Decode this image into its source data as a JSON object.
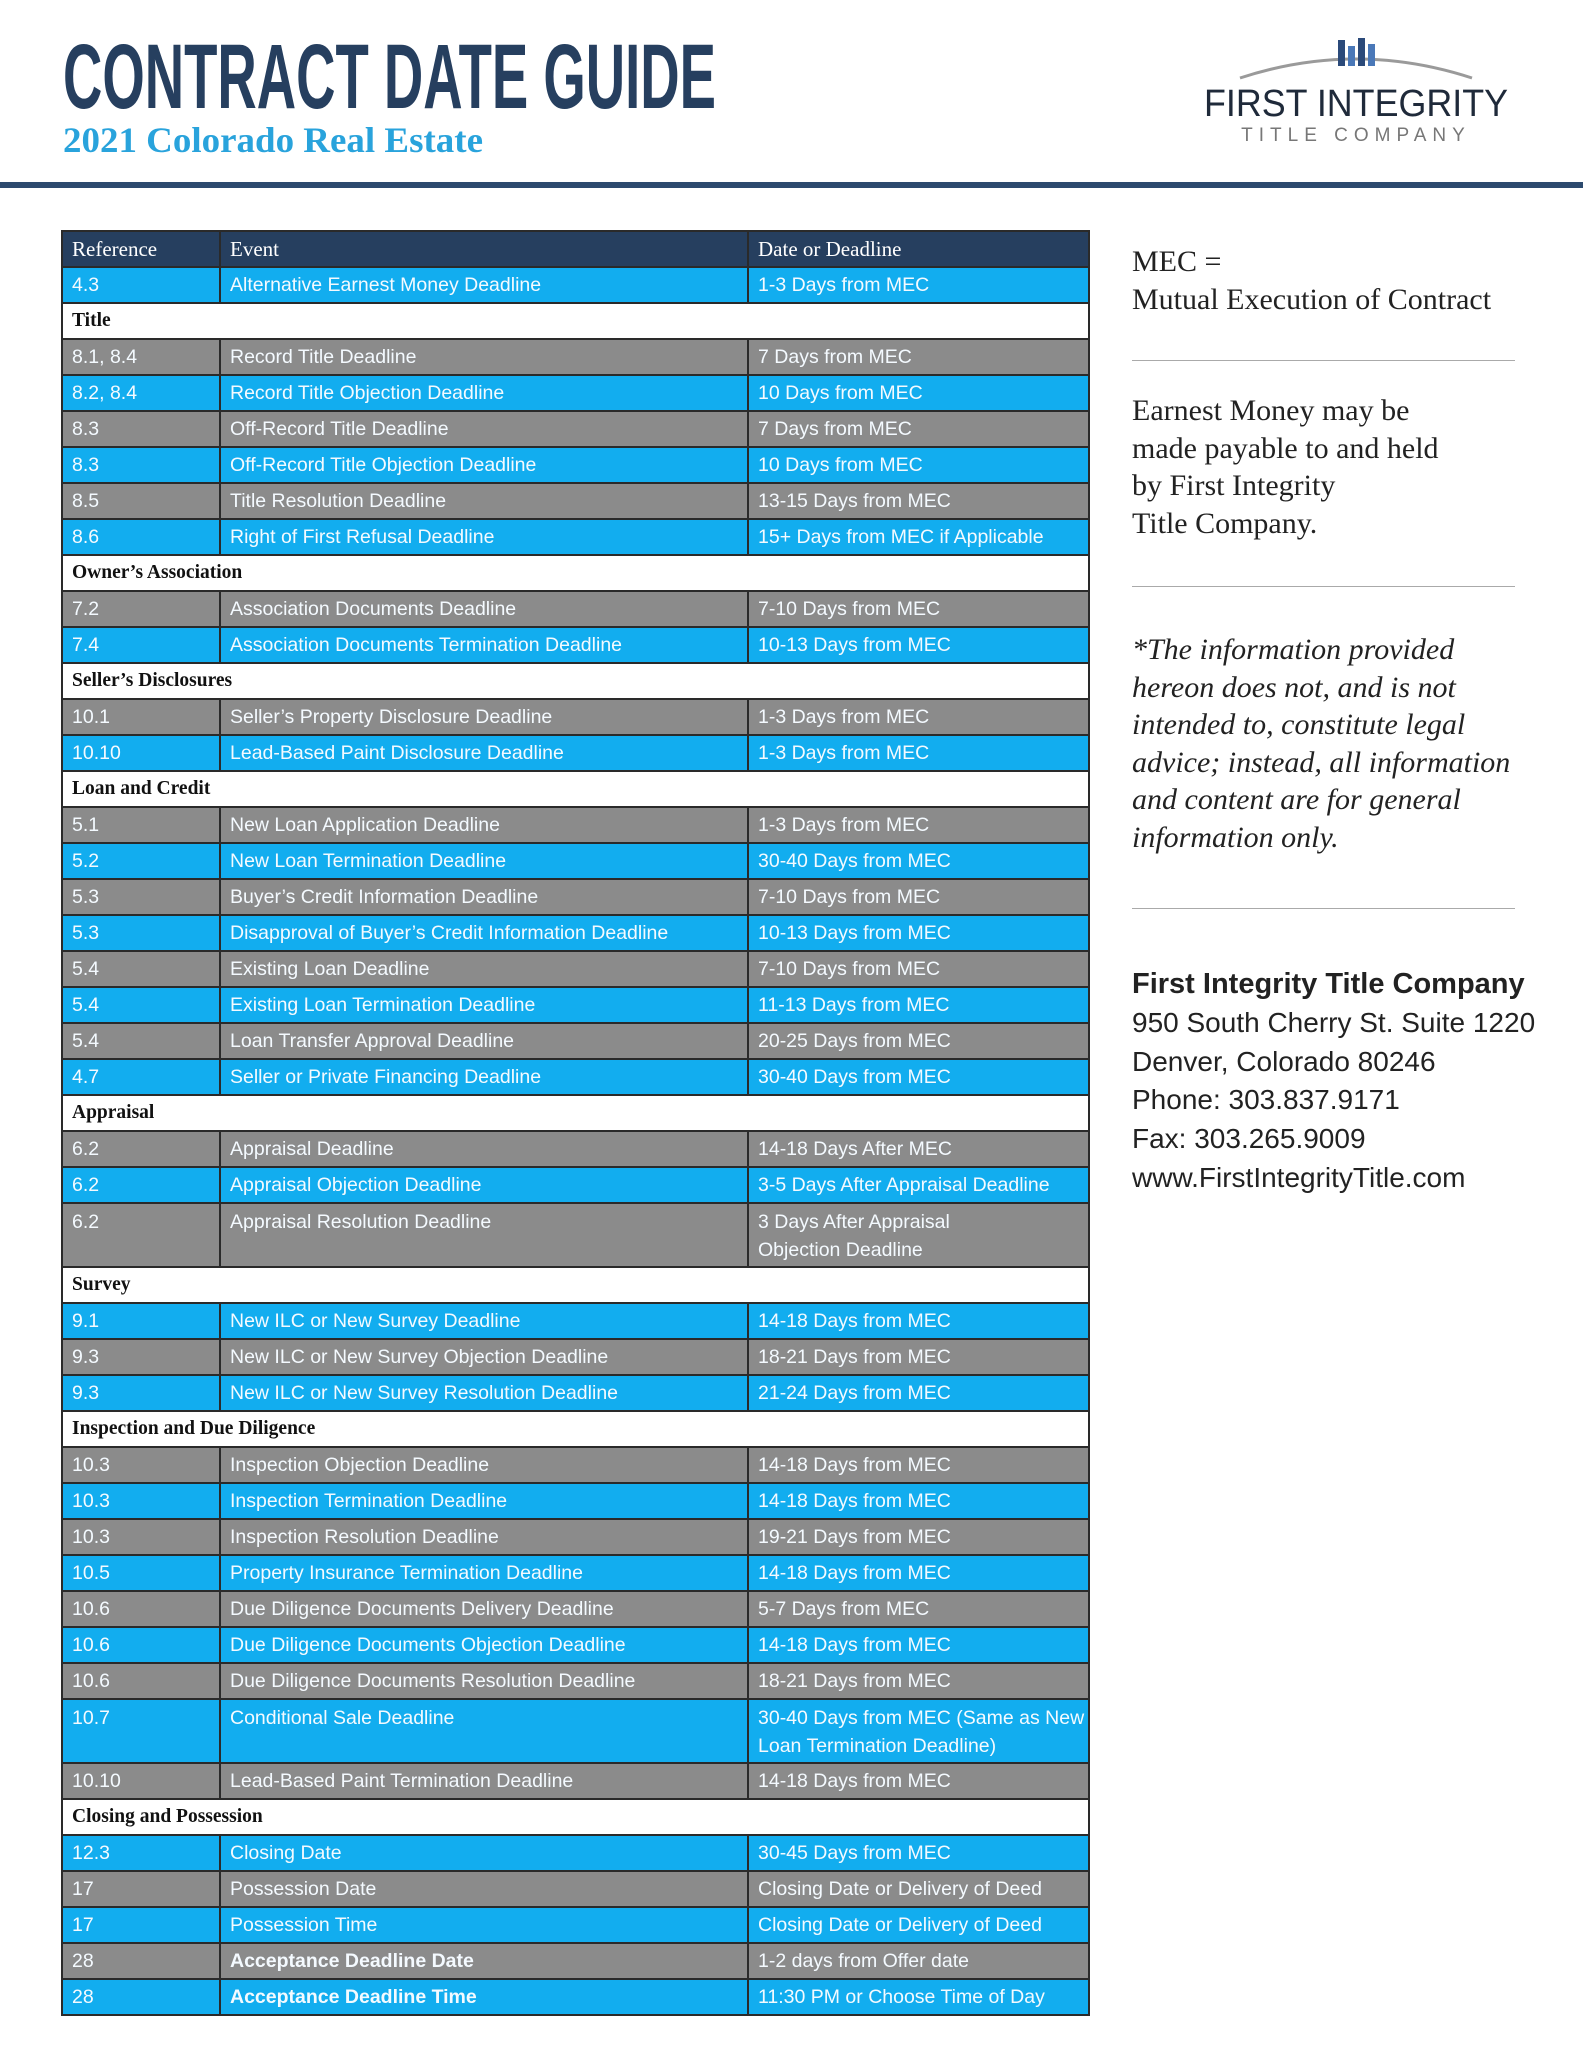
{
  "header": {
    "title": "CONTRACT DATE GUIDE",
    "subtitle": "2021 Colorado Real Estate",
    "logo": {
      "name": "FIRST INTEGRITY",
      "tagline": "TITLE COMPANY"
    }
  },
  "table": {
    "columns": [
      "Reference",
      "Event",
      "Date or Deadline"
    ],
    "row_colors": [
      "#12adef",
      "#8b8b8b"
    ],
    "sections": [
      {
        "rows": [
          {
            "ref": "4.3",
            "event": "Alternative Earnest Money Deadline",
            "date": "1-3 Days from MEC"
          }
        ]
      },
      {
        "title": "Title",
        "rows": [
          {
            "ref": "8.1, 8.4",
            "event": "Record Title Deadline",
            "date": "7 Days from MEC"
          },
          {
            "ref": "8.2, 8.4",
            "event": "Record Title Objection Deadline",
            "date": "10 Days from MEC"
          },
          {
            "ref": "8.3",
            "event": "Off-Record Title Deadline",
            "date": "7 Days from MEC"
          },
          {
            "ref": "8.3",
            "event": "Off-Record Title Objection Deadline",
            "date": "10 Days from MEC"
          },
          {
            "ref": "8.5",
            "event": "Title Resolution Deadline",
            "date": "13-15 Days from MEC"
          },
          {
            "ref": "8.6",
            "event": "Right of First Refusal Deadline",
            "date": "15+ Days from MEC if Applicable"
          }
        ]
      },
      {
        "title": "Owner’s Association",
        "rows": [
          {
            "ref": "7.2",
            "event": "Association Documents Deadline",
            "date": "7-10 Days from MEC"
          },
          {
            "ref": "7.4",
            "event": "Association Documents Termination Deadline",
            "date": "10-13 Days from MEC"
          }
        ]
      },
      {
        "title": "Seller’s Disclosures",
        "rows": [
          {
            "ref": "10.1",
            "event": "Seller’s Property Disclosure Deadline",
            "date": "1-3 Days from MEC"
          },
          {
            "ref": "10.10",
            "event": "Lead-Based Paint Disclosure Deadline",
            "date": "1-3 Days from MEC"
          }
        ]
      },
      {
        "title": "Loan and Credit",
        "rows": [
          {
            "ref": "5.1",
            "event": "New Loan Application Deadline",
            "date": "1-3 Days from MEC"
          },
          {
            "ref": "5.2",
            "event": "New Loan Termination Deadline",
            "date": "30-40 Days from MEC"
          },
          {
            "ref": "5.3",
            "event": "Buyer’s Credit Information Deadline",
            "date": "7-10 Days from MEC"
          },
          {
            "ref": "5.3",
            "event": "Disapproval of Buyer’s Credit Information Deadline",
            "date": "10-13 Days from MEC"
          },
          {
            "ref": "5.4",
            "event": "Existing Loan Deadline",
            "date": "7-10 Days from MEC"
          },
          {
            "ref": "5.4",
            "event": "Existing Loan Termination Deadline",
            "date": "11-13 Days from MEC"
          },
          {
            "ref": "5.4",
            "event": "Loan Transfer Approval Deadline",
            "date": "20-25 Days from MEC"
          },
          {
            "ref": "4.7",
            "event": "Seller or Private Financing Deadline",
            "date": "30-40 Days from MEC"
          }
        ]
      },
      {
        "title": "Appraisal",
        "rows": [
          {
            "ref": "6.2",
            "event": "Appraisal Deadline",
            "date": "14-18 Days After MEC"
          },
          {
            "ref": "6.2",
            "event": "Appraisal Objection Deadline",
            "date": "3-5 Days After Appraisal Deadline"
          },
          {
            "ref": "6.2",
            "event": "Appraisal Resolution Deadline",
            "date": [
              "3 Days After Appraisal",
              "Objection Deadline"
            ]
          }
        ]
      },
      {
        "title": "Survey",
        "rows": [
          {
            "ref": "9.1",
            "event": "New ILC or New Survey Deadline",
            "date": "14-18 Days from MEC"
          },
          {
            "ref": "9.3",
            "event": "New ILC or New Survey Objection Deadline",
            "date": "18-21 Days from MEC"
          },
          {
            "ref": "9.3",
            "event": "New ILC or New Survey Resolution Deadline",
            "date": "21-24 Days from MEC"
          }
        ]
      },
      {
        "title": "Inspection and Due Diligence",
        "rows": [
          {
            "ref": "10.3",
            "event": "Inspection Objection Deadline",
            "date": "14-18 Days from MEC"
          },
          {
            "ref": "10.3",
            "event": "Inspection Termination Deadline",
            "date": "14-18 Days from MEC"
          },
          {
            "ref": "10.3",
            "event": "Inspection Resolution Deadline",
            "date": "19-21 Days from MEC"
          },
          {
            "ref": "10.5",
            "event": "Property Insurance Termination Deadline",
            "date": "14-18 Days from MEC"
          },
          {
            "ref": "10.6",
            "event": "Due Diligence Documents Delivery Deadline",
            "date": "5-7 Days from MEC"
          },
          {
            "ref": "10.6",
            "event": "Due Diligence Documents Objection Deadline",
            "date": "14-18 Days from MEC"
          },
          {
            "ref": "10.6",
            "event": "Due Diligence Documents Resolution Deadline",
            "date": "18-21 Days from MEC"
          },
          {
            "ref": "10.7",
            "event": "Conditional Sale Deadline",
            "date": [
              "30-40 Days from MEC (Same as New",
              "Loan Termination Deadline)"
            ]
          },
          {
            "ref": "10.10",
            "event": "Lead-Based Paint Termination Deadline",
            "date": "14-18 Days from MEC"
          }
        ]
      },
      {
        "title": "Closing and Possession",
        "rows": [
          {
            "ref": "12.3",
            "event": "Closing Date",
            "date": "30-45 Days from MEC"
          },
          {
            "ref": "17",
            "event": "Possession Date",
            "date": "Closing Date or Delivery of Deed"
          },
          {
            "ref": "17",
            "event": "Possession Time",
            "date": "Closing Date or Delivery of Deed"
          },
          {
            "ref": "28",
            "event": "Acceptance Deadline Date",
            "date": "1-2 days from Offer date",
            "bold": true
          },
          {
            "ref": "28",
            "event": "Acceptance Deadline Time",
            "date": "11:30 PM or Choose Time of Day",
            "bold": true
          }
        ]
      }
    ]
  },
  "sidebar": {
    "mec": [
      "MEC =",
      "Mutual Execution of Contract"
    ],
    "earnest": [
      "Earnest Money may be",
      "made payable to and held",
      "by First Integrity",
      "Title Company."
    ],
    "disclaimer": [
      "*The information provided",
      "hereon does not, and is not",
      "intended to, constitute legal",
      "advice; instead, all information",
      "and content are for general",
      "information only."
    ],
    "contact": {
      "company": "First Integrity Title Company",
      "lines": [
        "950 South Cherry St. Suite 1220",
        "Denver, Colorado 80246",
        "Phone: 303.837.9171",
        "Fax: 303.265.9009",
        "www.FirstIntegrityTitle.com"
      ]
    }
  }
}
